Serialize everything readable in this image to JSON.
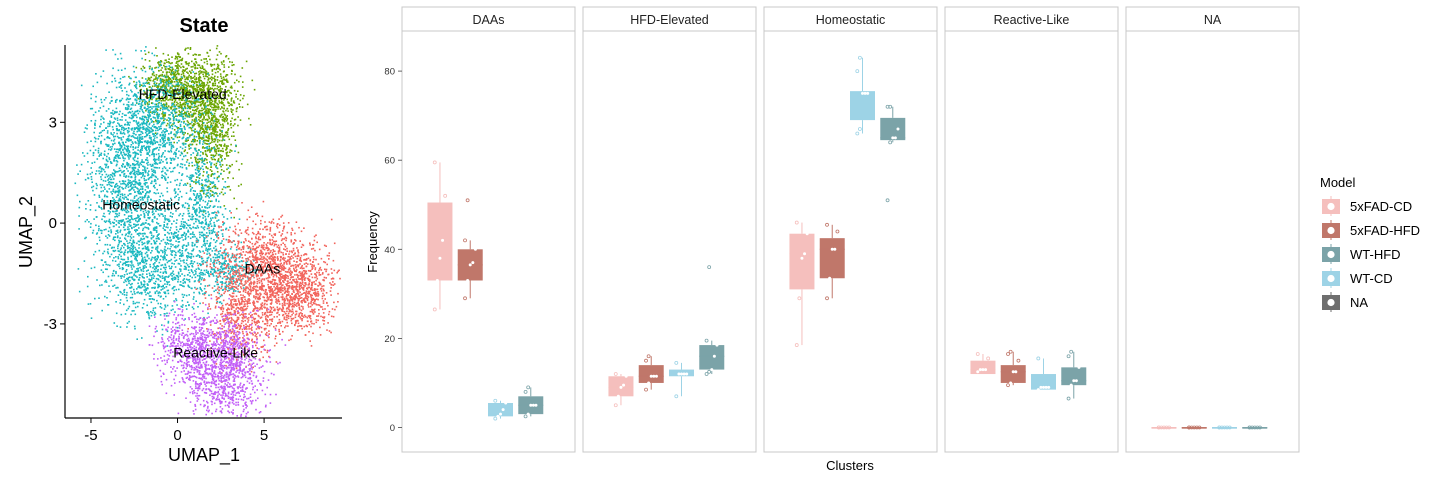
{
  "umap": {
    "title": "State",
    "xlabel": "UMAP_1",
    "ylabel": "UMAP_2",
    "x_ticks": [
      -5,
      0,
      5
    ],
    "y_ticks": [
      -3,
      0,
      3
    ],
    "xlim": [
      -6.5,
      9.5
    ],
    "ylim": [
      -5.8,
      5.3
    ],
    "clusters": [
      {
        "label": "HFD-Elevated",
        "color": "#6aa501",
        "label_at": [
          0.3,
          3.7
        ]
      },
      {
        "label": "Homeostatic",
        "color": "#1bb8c0",
        "label_at": [
          -2.1,
          0.4
        ]
      },
      {
        "label": "DAAs",
        "color": "#f2645c",
        "label_at": [
          4.9,
          -1.5
        ]
      },
      {
        "label": "Reactive-Like",
        "color": "#c25ff7",
        "label_at": [
          2.2,
          -4.0
        ]
      }
    ]
  },
  "chart_data": {
    "type": "box",
    "xlabel": "Clusters",
    "ylabel": "Frequency",
    "ylim": [
      -5.5,
      89
    ],
    "y_ticks": [
      0,
      20,
      40,
      60,
      80
    ],
    "facets": [
      "DAAs",
      "HFD-Elevated",
      "Homeostatic",
      "Reactive-Like",
      "NA"
    ],
    "legend": {
      "title": "Model",
      "position": "right",
      "items": [
        {
          "name": "5xFAD-CD",
          "color": "#f5bfbd"
        },
        {
          "name": "5xFAD-HFD",
          "color": "#c0776a"
        },
        {
          "name": "WT-HFD",
          "color": "#7ba3a8"
        },
        {
          "name": "WT-CD",
          "color": "#9dd3e6"
        },
        {
          "name": "NA",
          "color": "#6e6e6e"
        }
      ]
    },
    "series": [
      {
        "name": "5xFAD-CD",
        "color": "#f5bfbd",
        "boxes": [
          {
            "facet": "DAAs",
            "q1": 33,
            "median": 40,
            "q3": 50.5,
            "low": 26.5,
            "high": 59.5,
            "points": [
              26.5,
              33,
              38,
              42,
              52,
              59.5
            ]
          },
          {
            "facet": "HFD-Elevated",
            "q1": 7,
            "median": 9,
            "q3": 11.5,
            "low": 5,
            "high": 12,
            "points": [
              5,
              7,
              9,
              9.5,
              11.5,
              12
            ]
          },
          {
            "facet": "Homeostatic",
            "q1": 31,
            "median": 39,
            "q3": 43.5,
            "low": 18.5,
            "high": 46,
            "points": [
              18.5,
              29,
              38,
              39,
              43.5,
              46
            ]
          },
          {
            "facet": "Reactive-Like",
            "q1": 12,
            "median": 13,
            "q3": 15,
            "low": 12,
            "high": 16.5,
            "points": [
              12.5,
              13,
              13,
              13,
              15.5,
              16.5
            ]
          },
          {
            "facet": "NA",
            "q1": 0,
            "median": 0,
            "q3": 0,
            "low": 0,
            "high": 0,
            "points": [
              0,
              0,
              0,
              0,
              0,
              0
            ]
          }
        ]
      },
      {
        "name": "5xFAD-HFD",
        "color": "#c0776a",
        "boxes": [
          {
            "facet": "DAAs",
            "q1": 33,
            "median": 36.5,
            "q3": 40,
            "low": 29,
            "high": 42,
            "points": [
              29,
              33,
              36.5,
              37,
              40,
              42,
              51
            ]
          },
          {
            "facet": "HFD-Elevated",
            "q1": 10,
            "median": 11.5,
            "q3": 14,
            "low": 8.5,
            "high": 16,
            "points": [
              8.5,
              10,
              11.5,
              11.5,
              11.5,
              15,
              16
            ]
          },
          {
            "facet": "Homeostatic",
            "q1": 33.5,
            "median": 40,
            "q3": 42.5,
            "low": 29,
            "high": 45.5,
            "points": [
              29,
              33.5,
              40,
              40,
              44,
              45.5
            ]
          },
          {
            "facet": "Reactive-Like",
            "q1": 10,
            "median": 12.5,
            "q3": 14,
            "low": 9.5,
            "high": 17,
            "points": [
              9.5,
              10,
              12.5,
              12.5,
              15,
              16.5,
              17
            ]
          },
          {
            "facet": "NA",
            "q1": 0,
            "median": 0,
            "q3": 0,
            "low": 0,
            "high": 0,
            "points": [
              0,
              0,
              0,
              0,
              0,
              0
            ]
          }
        ]
      },
      {
        "name": "WT-CD",
        "color": "#9dd3e6",
        "boxes": [
          {
            "facet": "DAAs",
            "q1": 2.5,
            "median": 3,
            "q3": 5.5,
            "low": 2,
            "high": 6,
            "points": [
              2,
              2.5,
              3,
              4,
              5.5,
              6
            ]
          },
          {
            "facet": "HFD-Elevated",
            "q1": 11.5,
            "median": 12,
            "q3": 13,
            "low": 7,
            "high": 14.5,
            "points": [
              7,
              12,
              12,
              12,
              12,
              14.5
            ]
          },
          {
            "facet": "Homeostatic",
            "q1": 69,
            "median": 75,
            "q3": 75.5,
            "low": 66,
            "high": 83,
            "points": [
              66,
              67,
              75,
              75,
              75,
              80,
              83
            ]
          },
          {
            "facet": "Reactive-Like",
            "q1": 8.5,
            "median": 9,
            "q3": 12,
            "low": 8.5,
            "high": 15.5,
            "points": [
              8.5,
              9,
              9,
              9,
              9,
              15.5
            ]
          },
          {
            "facet": "NA",
            "q1": 0,
            "median": 0,
            "q3": 0,
            "low": 0,
            "high": 0,
            "points": [
              0,
              0,
              0,
              0,
              0,
              0
            ]
          }
        ]
      },
      {
        "name": "WT-HFD",
        "color": "#7ba3a8",
        "boxes": [
          {
            "facet": "DAAs",
            "q1": 3,
            "median": 5,
            "q3": 7,
            "low": 2.5,
            "high": 9,
            "points": [
              2.5,
              3,
              5,
              5,
              5,
              8,
              9
            ]
          },
          {
            "facet": "HFD-Elevated",
            "q1": 13,
            "median": 16,
            "q3": 18.5,
            "low": 12,
            "high": 19.5,
            "points": [
              12,
              12.5,
              13,
              16,
              18.5,
              19.5,
              36
            ]
          },
          {
            "facet": "Homeostatic",
            "q1": 64.5,
            "median": 65,
            "q3": 69.5,
            "low": 64,
            "high": 72,
            "points": [
              51,
              64,
              65,
              65,
              67,
              72,
              72
            ]
          },
          {
            "facet": "Reactive-Like",
            "q1": 9.5,
            "median": 10.5,
            "q3": 13.5,
            "low": 6.5,
            "high": 17,
            "points": [
              6.5,
              9.5,
              10.5,
              10.5,
              13.5,
              16,
              17
            ]
          },
          {
            "facet": "NA",
            "q1": 0,
            "median": 0,
            "q3": 0,
            "low": 0,
            "high": 0,
            "points": [
              0,
              0,
              0,
              0,
              0,
              0
            ]
          }
        ]
      }
    ]
  }
}
